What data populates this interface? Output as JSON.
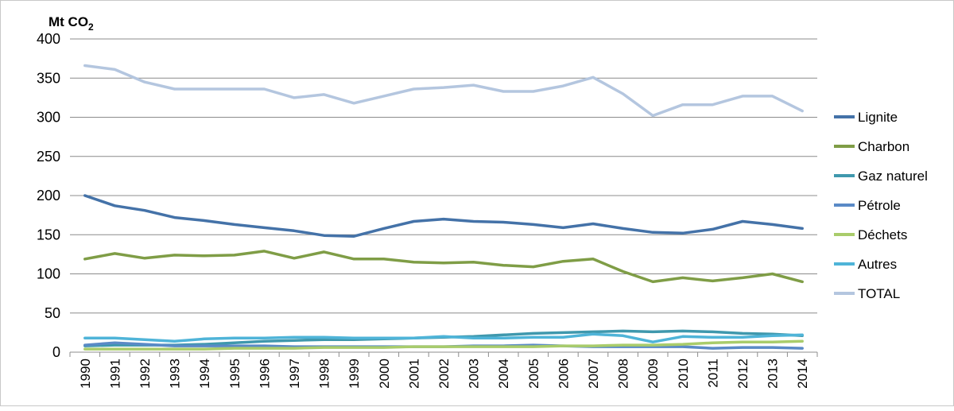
{
  "chart_data": {
    "type": "line",
    "ylabel_main": "Mt CO",
    "ylabel_sub": "2",
    "ylim": [
      0,
      400
    ],
    "yticks": [
      "0",
      "50",
      "100",
      "150",
      "200",
      "250",
      "300",
      "350",
      "400"
    ],
    "grid": "horizontal",
    "legend_position": "right",
    "x": [
      "1990",
      "1991",
      "1992",
      "1993",
      "1994",
      "1995",
      "1996",
      "1997",
      "1998",
      "1999",
      "2000",
      "2001",
      "2002",
      "2003",
      "2004",
      "2005",
      "2006",
      "2007",
      "2008",
      "2009",
      "2010",
      "2011",
      "2012",
      "2013",
      "2014"
    ],
    "series": [
      {
        "name": "Lignite",
        "color": "#4472a8",
        "values": [
          200,
          187,
          181,
          172,
          168,
          163,
          159,
          155,
          149,
          148,
          158,
          167,
          170,
          167,
          166,
          163,
          159,
          164,
          158,
          153,
          152,
          157,
          167,
          163,
          158
        ]
      },
      {
        "name": "Charbon",
        "color": "#7f9d46",
        "values": [
          119,
          126,
          120,
          124,
          123,
          124,
          129,
          120,
          128,
          119,
          119,
          115,
          114,
          115,
          111,
          109,
          116,
          119,
          103,
          90,
          95,
          91,
          95,
          100,
          90
        ]
      },
      {
        "name": "Gaz naturel",
        "color": "#3f98ad",
        "values": [
          8,
          9,
          9,
          9,
          10,
          12,
          14,
          15,
          16,
          16,
          17,
          18,
          19,
          20,
          22,
          24,
          25,
          26,
          27,
          26,
          27,
          26,
          24,
          23,
          21
        ]
      },
      {
        "name": "Pétrole",
        "color": "#5a8ac6",
        "values": [
          9,
          12,
          10,
          8,
          8,
          8,
          8,
          7,
          7,
          7,
          7,
          7,
          7,
          8,
          8,
          9,
          8,
          7,
          7,
          7,
          7,
          5,
          6,
          6,
          5
        ]
      },
      {
        "name": "Déchets",
        "color": "#a9cc6b",
        "values": [
          4,
          4,
          4,
          4,
          4,
          5,
          5,
          5,
          6,
          6,
          6,
          7,
          7,
          7,
          7,
          7,
          8,
          8,
          9,
          9,
          10,
          12,
          13,
          13,
          14
        ]
      },
      {
        "name": "Autres",
        "color": "#4fb4d8",
        "values": [
          18,
          18,
          16,
          14,
          17,
          18,
          18,
          19,
          19,
          18,
          18,
          18,
          20,
          18,
          18,
          19,
          19,
          23,
          21,
          13,
          20,
          19,
          19,
          21,
          22
        ]
      },
      {
        "name": "TOTAL",
        "color": "#b4c6df",
        "values": [
          366,
          361,
          345,
          336,
          336,
          336,
          336,
          325,
          329,
          318,
          327,
          336,
          338,
          341,
          333,
          333,
          340,
          351,
          330,
          302,
          316,
          316,
          327,
          327,
          308
        ]
      }
    ]
  }
}
